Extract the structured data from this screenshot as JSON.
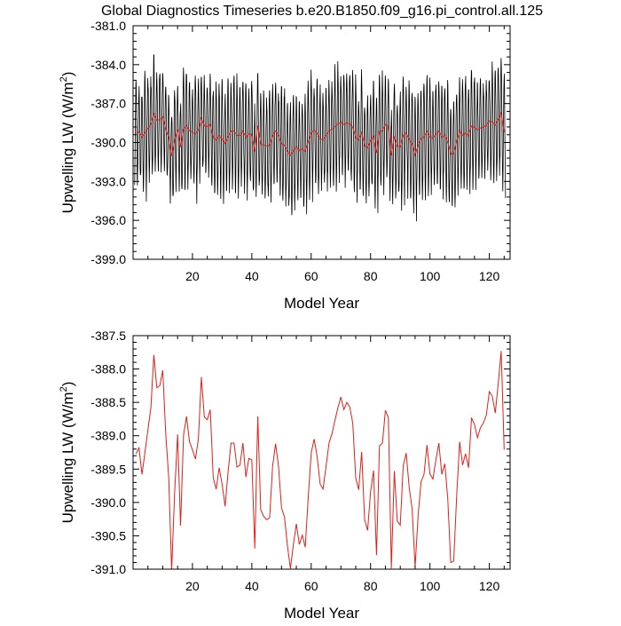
{
  "figure": {
    "title": "Global Diagnostics Timeseries b.e20.B1850.f09_g16.pi_control.all.125"
  },
  "chart_data": [
    {
      "type": "line",
      "xlabel": "Model Year",
      "ylabel_main": "Upwelling LW (W/m",
      "ylabel_sup": "2",
      "ylabel_close": ")",
      "xlim": [
        0,
        127
      ],
      "ylim": [
        -399.0,
        -381.0
      ],
      "xticks": [
        20,
        40,
        60,
        80,
        100,
        120
      ],
      "yticks": [
        -381.0,
        -384.0,
        -387.0,
        -390.0,
        -393.0,
        -396.0,
        -399.0
      ],
      "ytick_labels": [
        "-381.0",
        "-384.0",
        "-387.0",
        "-390.0",
        "-393.0",
        "-396.0",
        "-399.0"
      ],
      "series": [
        {
          "kind": "monthly",
          "color": "#000000",
          "annual_cycle": [
            -3.7,
            -2.6,
            -0.6,
            1.4,
            2.9,
            3.8,
            3.6,
            2.5,
            0.7,
            -1.2,
            -2.9,
            -4.2
          ],
          "note_values": "monthly series = annual mean + annual_cycle + variability"
        },
        {
          "kind": "annual",
          "color": "#e0201b",
          "values": [
            -389.27,
            -389.18,
            -389.58,
            -389.25,
            -388.91,
            -388.58,
            -387.79,
            -388.28,
            -388.25,
            -388.02,
            -388.97,
            -389.62,
            -391.02,
            -389.85,
            -388.98,
            -390.35,
            -388.99,
            -388.71,
            -389.09,
            -389.21,
            -389.35,
            -389.05,
            -388.12,
            -388.72,
            -388.76,
            -388.61,
            -389.63,
            -389.8,
            -389.48,
            -389.73,
            -390.06,
            -389.54,
            -389.11,
            -389.11,
            -389.47,
            -389.44,
            -389.11,
            -389.62,
            -389.34,
            -389.36,
            -390.69,
            -388.71,
            -390.11,
            -390.21,
            -390.26,
            -390.23,
            -389.46,
            -389.12,
            -389.46,
            -390.08,
            -390.22,
            -390.65,
            -390.99,
            -390.63,
            -390.32,
            -390.63,
            -390.49,
            -390.67,
            -389.92,
            -389.26,
            -389.05,
            -389.31,
            -389.72,
            -389.8,
            -389.46,
            -389.11,
            -388.97,
            -388.77,
            -388.58,
            -388.42,
            -388.61,
            -388.5,
            -388.57,
            -388.81,
            -389.63,
            -389.81,
            -389.24,
            -390.26,
            -390.42,
            -389.84,
            -389.52,
            -390.79,
            -389.15,
            -389.11,
            -388.62,
            -388.73,
            -390.99,
            -389.53,
            -390.28,
            -390.34,
            -389.45,
            -389.26,
            -389.77,
            -390.1,
            -390.97,
            -390.21,
            -389.69,
            -389.58,
            -389.14,
            -389.57,
            -389.65,
            -389.36,
            -389.11,
            -389.58,
            -389.42,
            -389.94,
            -390.9,
            -390.88,
            -389.91,
            -389.09,
            -389.44,
            -389.27,
            -389.48,
            -388.73,
            -388.83,
            -389.03,
            -388.88,
            -388.81,
            -388.69,
            -388.34,
            -388.41,
            -388.66,
            -388.22,
            -387.73,
            -389.21
          ]
        }
      ]
    },
    {
      "type": "line",
      "xlabel": "Model Year",
      "ylabel_main": "Upwelling LW (W/m",
      "ylabel_sup": "2",
      "ylabel_close": ")",
      "xlim": [
        0,
        127
      ],
      "ylim": [
        -391.0,
        -387.5
      ],
      "xticks": [
        20,
        40,
        60,
        80,
        100,
        120
      ],
      "yticks": [
        -387.5,
        -388.0,
        -388.5,
        -389.0,
        -389.5,
        -390.0,
        -390.5,
        -391.0
      ],
      "ytick_labels": [
        "-387.5",
        "-388.0",
        "-388.5",
        "-389.0",
        "-389.5",
        "-390.0",
        "-390.5",
        "-391.0"
      ],
      "series": [
        {
          "kind": "annual",
          "color": "#e0201b",
          "values": [
            -389.27,
            -389.18,
            -389.58,
            -389.25,
            -388.91,
            -388.58,
            -387.79,
            -388.28,
            -388.25,
            -388.02,
            -388.97,
            -389.62,
            -391.02,
            -389.85,
            -388.98,
            -390.35,
            -388.99,
            -388.71,
            -389.09,
            -389.21,
            -389.35,
            -389.05,
            -388.12,
            -388.72,
            -388.76,
            -388.61,
            -389.63,
            -389.8,
            -389.48,
            -389.73,
            -390.06,
            -389.54,
            -389.11,
            -389.11,
            -389.47,
            -389.44,
            -389.11,
            -389.62,
            -389.34,
            -389.36,
            -390.69,
            -388.71,
            -390.11,
            -390.21,
            -390.26,
            -390.23,
            -389.46,
            -389.12,
            -389.46,
            -390.08,
            -390.22,
            -390.65,
            -390.99,
            -390.63,
            -390.32,
            -390.63,
            -390.49,
            -390.67,
            -389.92,
            -389.26,
            -389.05,
            -389.31,
            -389.72,
            -389.8,
            -389.46,
            -389.11,
            -388.97,
            -388.77,
            -388.58,
            -388.42,
            -388.61,
            -388.5,
            -388.57,
            -388.81,
            -389.63,
            -389.81,
            -389.24,
            -390.26,
            -390.42,
            -389.84,
            -389.52,
            -390.79,
            -389.15,
            -389.11,
            -388.62,
            -388.73,
            -390.99,
            -389.53,
            -390.28,
            -390.34,
            -389.45,
            -389.26,
            -389.77,
            -390.1,
            -390.97,
            -390.21,
            -389.69,
            -389.58,
            -389.14,
            -389.57,
            -389.65,
            -389.36,
            -389.11,
            -389.58,
            -389.42,
            -389.94,
            -390.9,
            -390.88,
            -389.91,
            -389.09,
            -389.44,
            -389.27,
            -389.48,
            -388.73,
            -388.83,
            -389.03,
            -388.88,
            -388.81,
            -388.69,
            -388.34,
            -388.41,
            -388.66,
            -388.22,
            -387.73,
            -389.21
          ]
        }
      ]
    }
  ]
}
